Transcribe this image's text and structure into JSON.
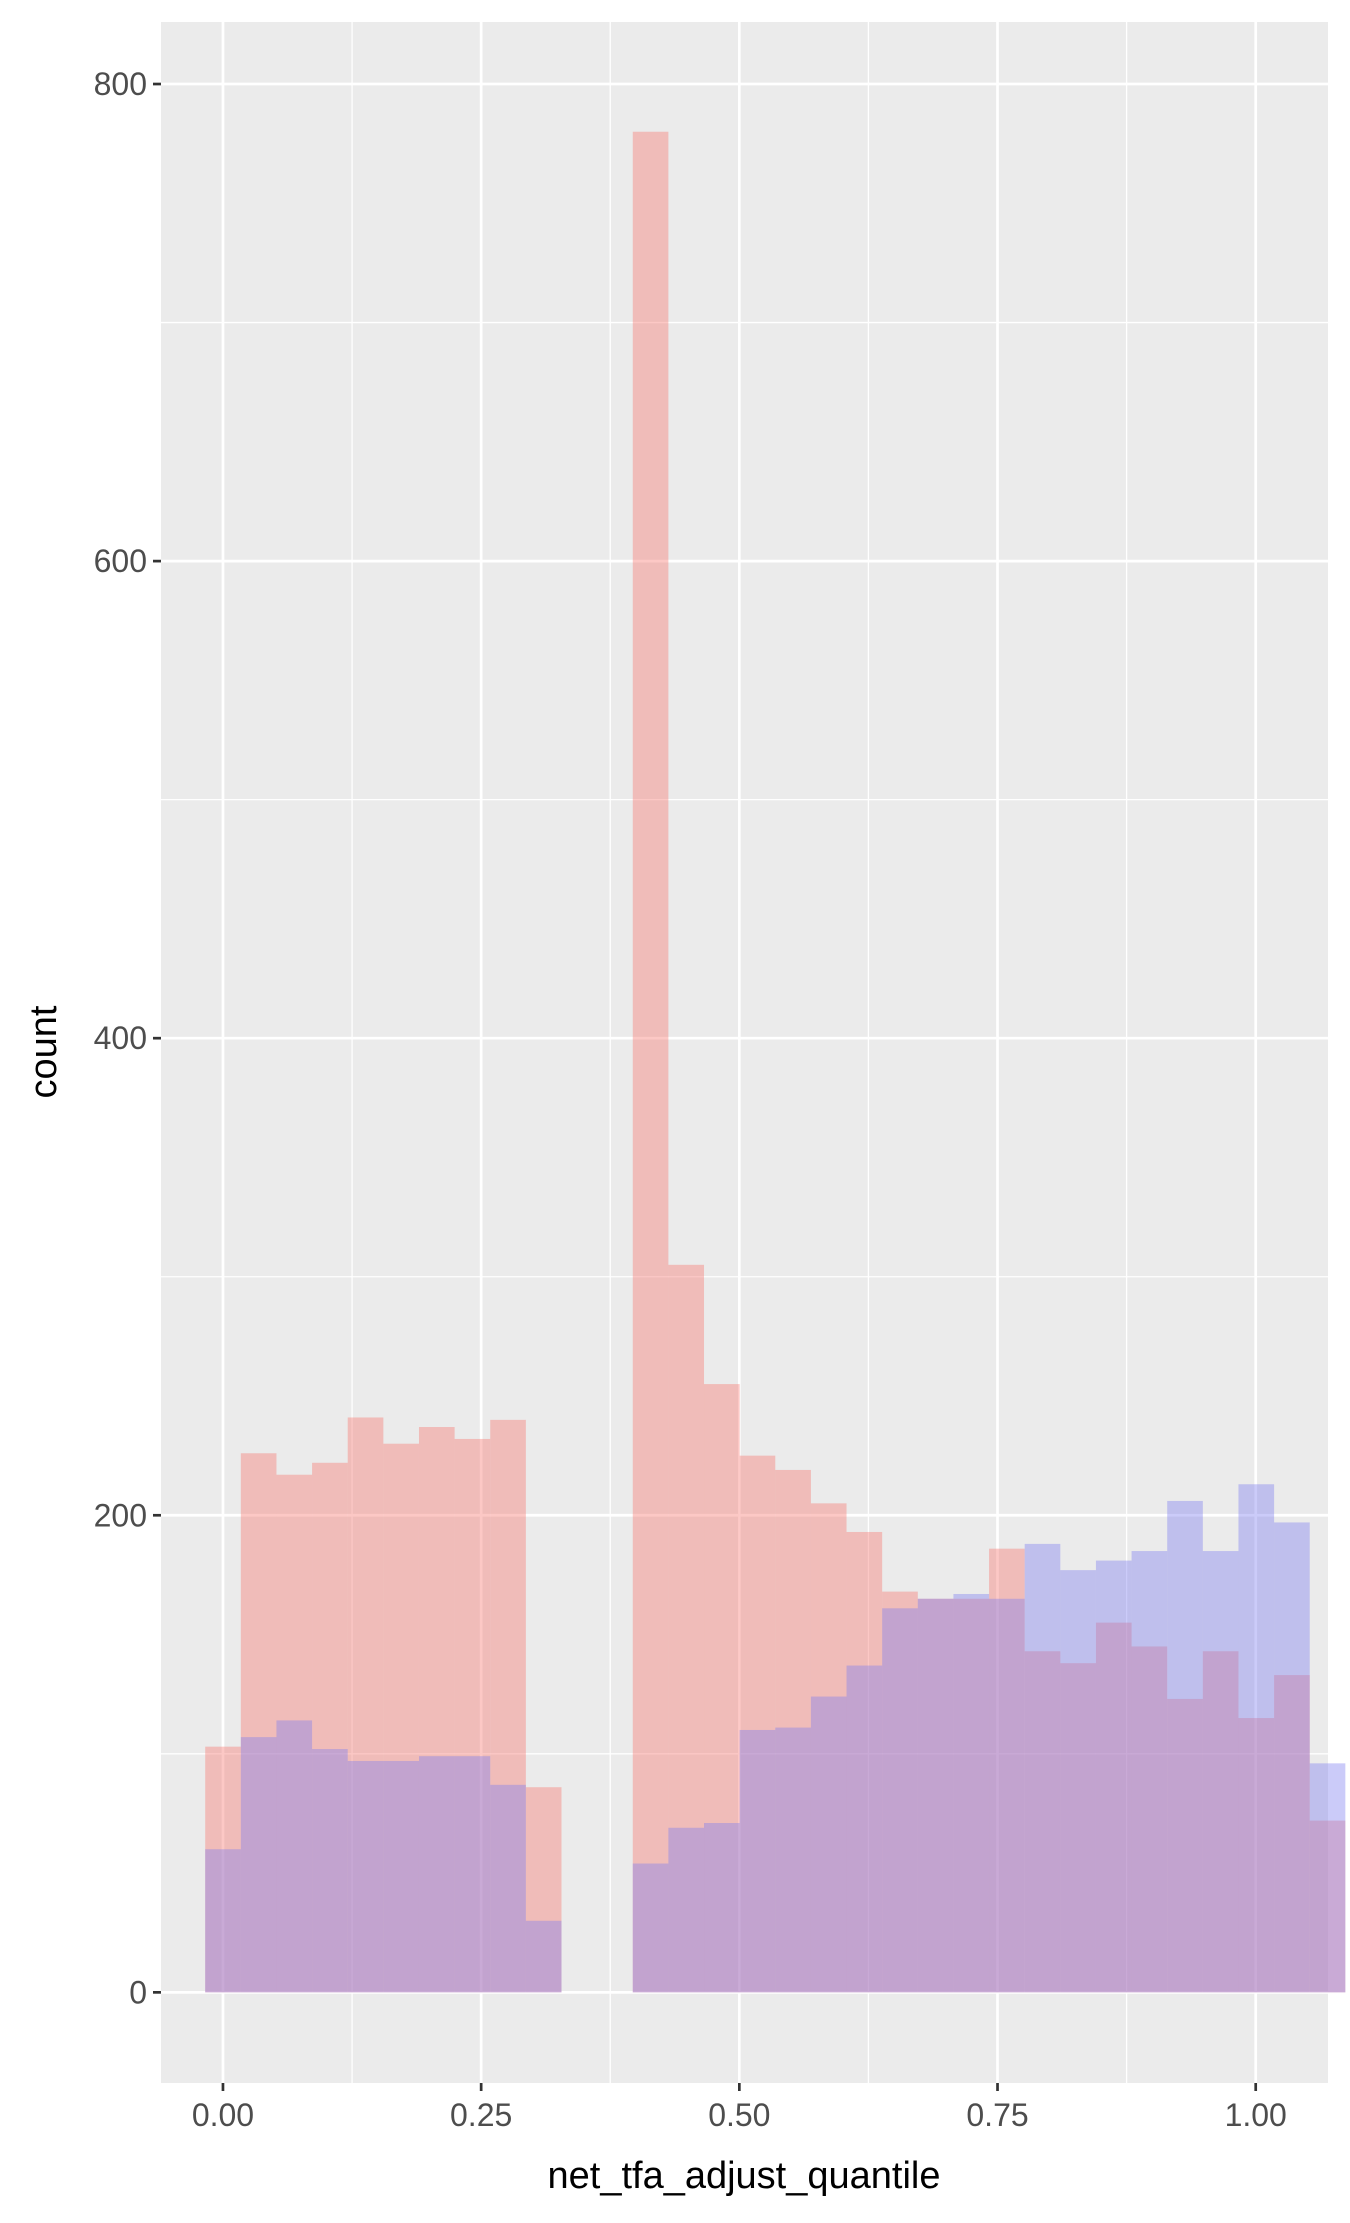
{
  "chart_data": {
    "type": "bar",
    "subtype": "overlapping-histogram",
    "xlabel": "net_tfa_adjust_quantile",
    "ylabel": "count",
    "xlim": [
      -0.06,
      1.07
    ],
    "ylim": [
      -38,
      826
    ],
    "x_ticks": [
      0.0,
      0.25,
      0.5,
      0.75,
      1.0
    ],
    "x_tick_labels": [
      "0.00",
      "0.25",
      "0.50",
      "0.75",
      "1.00"
    ],
    "y_ticks": [
      0,
      200,
      400,
      600,
      800
    ],
    "y_tick_labels": [
      "0",
      "200",
      "400",
      "600",
      "800"
    ],
    "grid": true,
    "legend": "none",
    "bin_start": -0.0172,
    "bin_width": 0.0345,
    "series": [
      {
        "color": "#F8766D",
        "opacity": 0.4,
        "values": [
          103,
          226,
          217,
          222,
          241,
          230,
          237,
          232,
          240,
          86,
          0,
          0,
          780,
          305,
          255,
          225,
          219,
          205,
          193,
          168,
          165,
          165,
          186,
          143,
          138,
          155,
          145,
          123,
          143,
          115,
          133,
          72
        ]
      },
      {
        "color": "#7E7EF0",
        "opacity": 0.4,
        "values": [
          60,
          107,
          114,
          102,
          97,
          97,
          99,
          99,
          87,
          30,
          0,
          0,
          54,
          69,
          71,
          110,
          111,
          124,
          137,
          161,
          165,
          167,
          165,
          188,
          177,
          181,
          185,
          206,
          185,
          213,
          197,
          96
        ]
      }
    ]
  }
}
